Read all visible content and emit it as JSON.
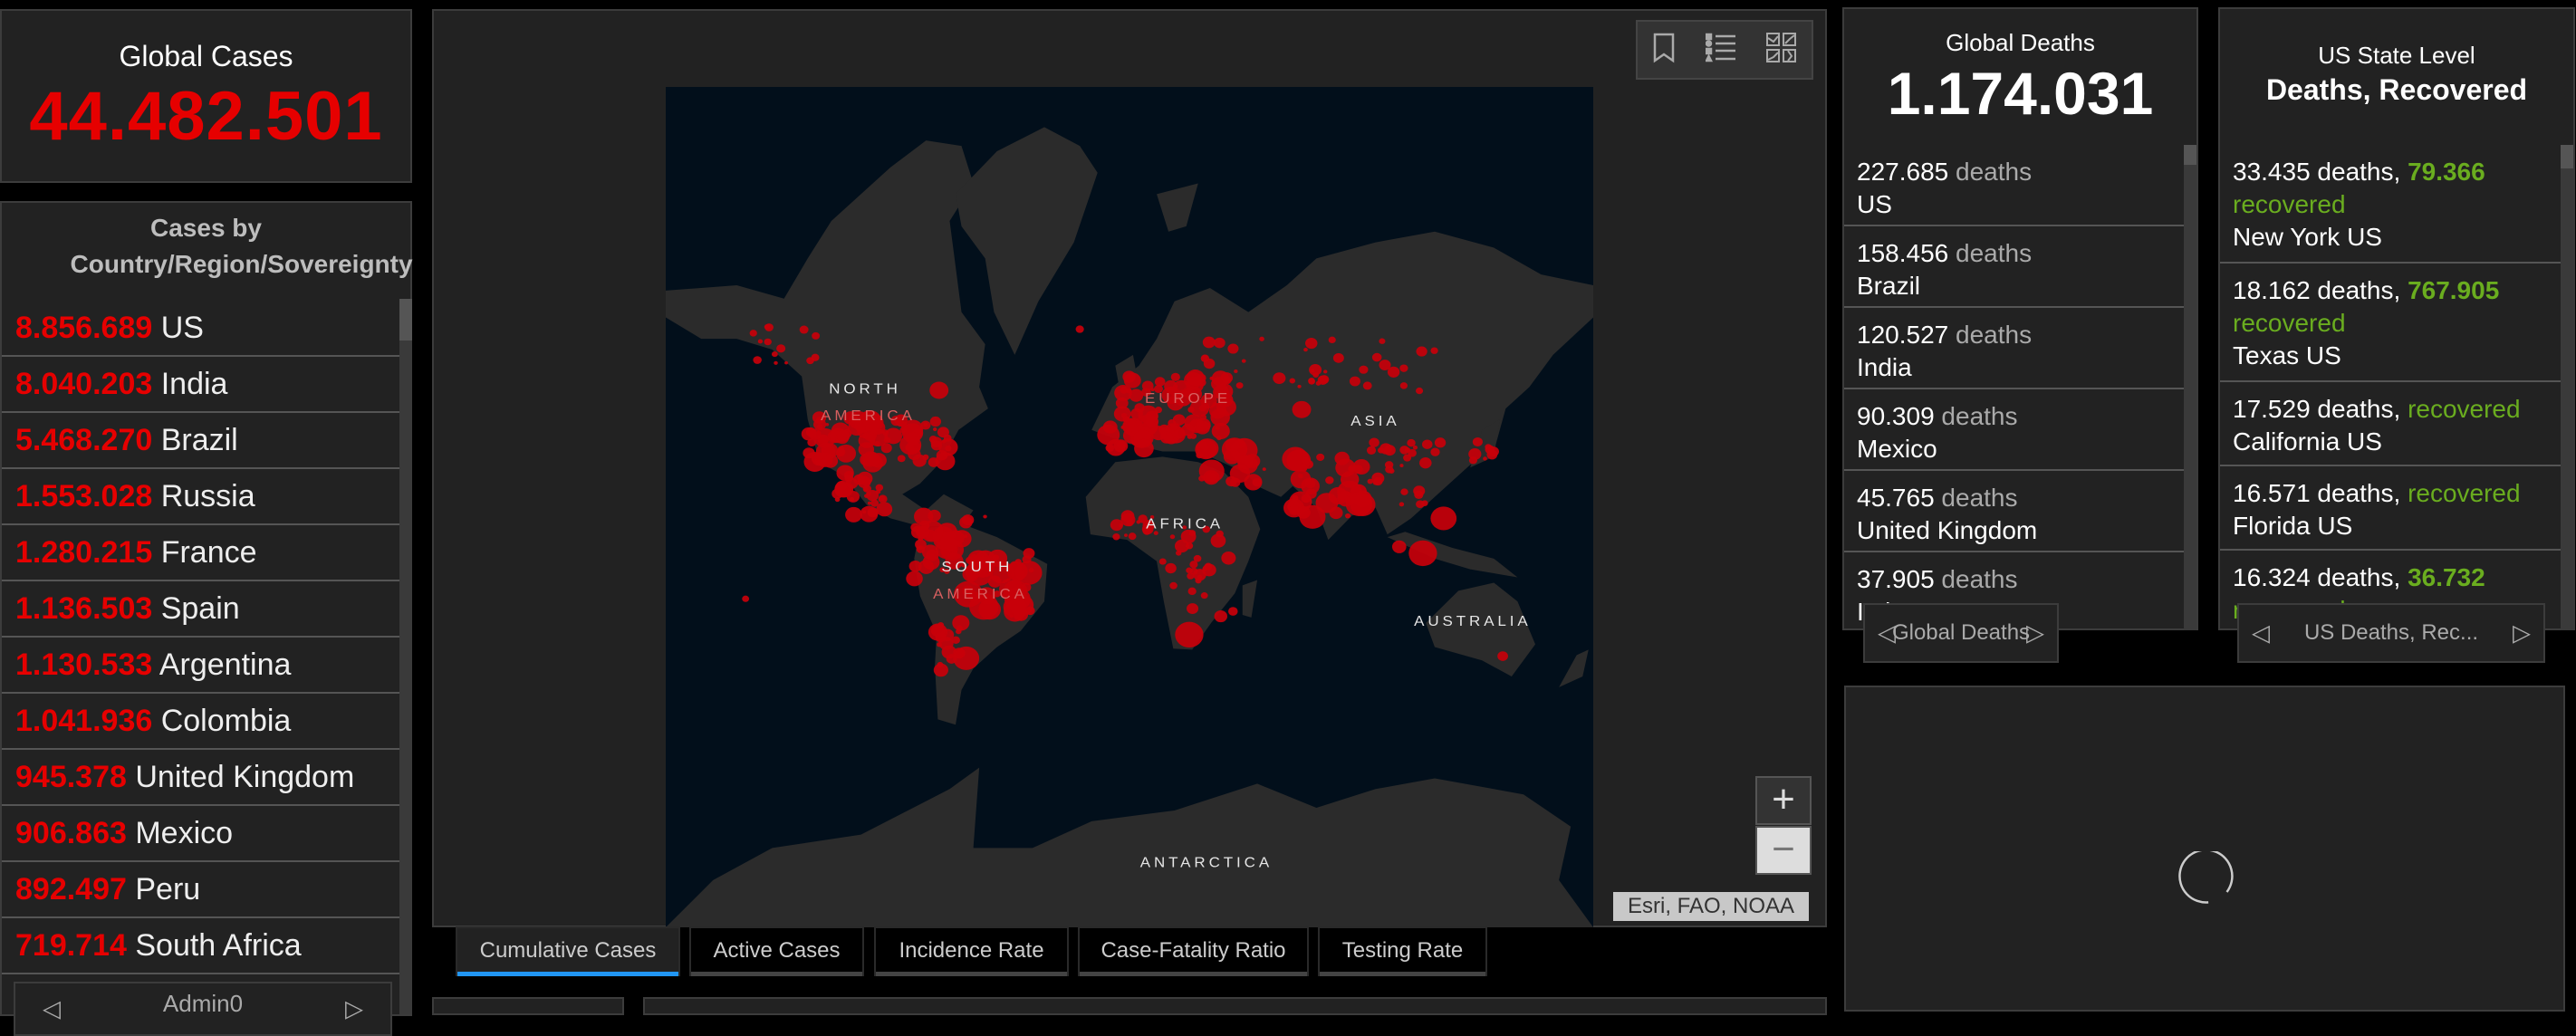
{
  "global_cases": {
    "title": "Global Cases",
    "value": "44.482.501"
  },
  "country_list": {
    "title": "Cases by Country/Region/Sovereignty",
    "items": [
      {
        "value": "8.856.689",
        "name": "US"
      },
      {
        "value": "8.040.203",
        "name": "India"
      },
      {
        "value": "5.468.270",
        "name": "Brazil"
      },
      {
        "value": "1.553.028",
        "name": "Russia"
      },
      {
        "value": "1.280.215",
        "name": "France"
      },
      {
        "value": "1.136.503",
        "name": "Spain"
      },
      {
        "value": "1.130.533",
        "name": "Argentina"
      },
      {
        "value": "1.041.936",
        "name": "Colombia"
      },
      {
        "value": "945.378",
        "name": "United Kingdom"
      },
      {
        "value": "906.863",
        "name": "Mexico"
      },
      {
        "value": "892.497",
        "name": "Peru"
      },
      {
        "value": "719.714",
        "name": "South Africa"
      }
    ],
    "pager_label": "Admin0"
  },
  "map": {
    "labels": {
      "north": "NORTH",
      "america": "AMERICA",
      "europe": "EUROPE",
      "asia": "ASIA",
      "africa": "AFRICA",
      "south": "SOUTH",
      "s_america": "AMERICA",
      "australia": "AUSTRALIA",
      "antarctica": "ANTARCTICA"
    },
    "attribution": "Esri, FAO, NOAA",
    "zoom_in": "+",
    "zoom_out": "−",
    "toolbar_icons": [
      "bookmark-icon",
      "legend-icon",
      "basemap-gallery-icon"
    ],
    "colors": {
      "ocean": "#020f1b",
      "land": "#2b2b2b",
      "dots": "#c8000a"
    }
  },
  "tabs": [
    {
      "label": "Cumulative Cases",
      "active": true
    },
    {
      "label": "Active Cases"
    },
    {
      "label": "Incidence Rate"
    },
    {
      "label": "Case-Fatality Ratio"
    },
    {
      "label": "Testing Rate"
    }
  ],
  "global_deaths": {
    "title": "Global Deaths",
    "value": "1.174.031",
    "unit": "deaths",
    "items": [
      {
        "value": "227.685",
        "name": "US"
      },
      {
        "value": "158.456",
        "name": "Brazil"
      },
      {
        "value": "120.527",
        "name": "India"
      },
      {
        "value": "90.309",
        "name": "Mexico"
      },
      {
        "value": "45.765",
        "name": "United Kingdom"
      },
      {
        "value": "37.905",
        "name": "Italy"
      }
    ],
    "pager_label": "Global Deaths"
  },
  "us_state": {
    "title": "US State Level",
    "subtitle": "Deaths, Recovered",
    "deaths_unit": "deaths,",
    "recovered_unit": "recovered",
    "items": [
      {
        "deaths": "33.435",
        "recovered": "79.366",
        "name": "New York US"
      },
      {
        "deaths": "18.162",
        "recovered": "767.905",
        "name": "Texas US"
      },
      {
        "deaths": "17.529",
        "recovered": "",
        "name": "California US"
      },
      {
        "deaths": "16.571",
        "recovered": "",
        "name": "Florida US"
      },
      {
        "deaths": "16.324",
        "recovered": "36.732",
        "name": ""
      }
    ],
    "pager_label": "US Deaths, Rec..."
  },
  "colors": {
    "cases_red": "#e60000",
    "recovered_green": "#6aad1f",
    "tab_active": "#2196f3",
    "panel_bg": "#222222"
  }
}
